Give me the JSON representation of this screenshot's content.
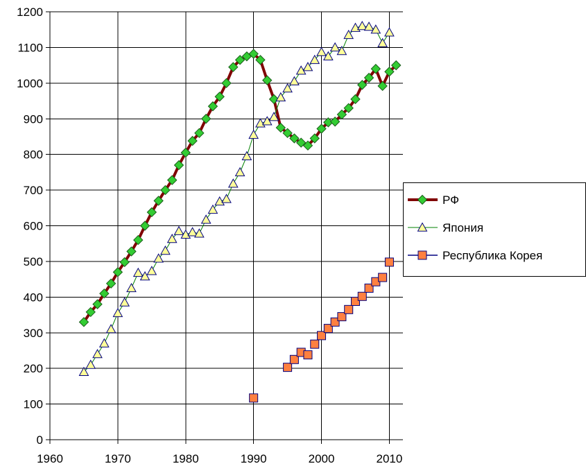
{
  "chart_data": {
    "type": "line",
    "title": "",
    "xlabel": "",
    "ylabel": "",
    "xlim": [
      1960,
      2012
    ],
    "ylim": [
      0,
      1200
    ],
    "x_ticks": [
      "1960",
      "1970",
      "1980",
      "1990",
      "2000",
      "2010"
    ],
    "y_ticks": [
      "0",
      "100",
      "200",
      "300",
      "400",
      "500",
      "600",
      "700",
      "800",
      "900",
      "1000",
      "1100",
      "1200"
    ],
    "grid": true,
    "legend_position": "right",
    "series": [
      {
        "name": "РФ",
        "color": "#800000",
        "marker": "diamond",
        "marker_color": "#33cc33",
        "x": [
          1965,
          1966,
          1967,
          1968,
          1969,
          1970,
          1971,
          1972,
          1973,
          1974,
          1975,
          1976,
          1977,
          1978,
          1979,
          1980,
          1981,
          1982,
          1983,
          1984,
          1985,
          1986,
          1987,
          1988,
          1989,
          1990,
          1991,
          1992,
          1993,
          1994,
          1995,
          1996,
          1997,
          1998,
          1999,
          2000,
          2001,
          2002,
          2003,
          2004,
          2005,
          2006,
          2007,
          2008,
          2009,
          2010,
          2011
        ],
        "y": [
          330,
          358,
          380,
          410,
          438,
          470,
          498,
          528,
          560,
          600,
          638,
          670,
          700,
          728,
          770,
          805,
          838,
          860,
          900,
          935,
          962,
          1000,
          1045,
          1065,
          1075,
          1082,
          1065,
          1008,
          955,
          875,
          860,
          845,
          833,
          825,
          845,
          872,
          890,
          892,
          912,
          930,
          955,
          995,
          1015,
          1040,
          992,
          1032,
          1050
        ]
      },
      {
        "name": "Япония",
        "color": "#008000",
        "marker": "triangle",
        "marker_color": "#ffff99",
        "x": [
          1965,
          1966,
          1967,
          1968,
          1969,
          1970,
          1971,
          1972,
          1973,
          1974,
          1975,
          1976,
          1977,
          1978,
          1979,
          1980,
          1981,
          1982,
          1983,
          1984,
          1985,
          1986,
          1987,
          1988,
          1989,
          1990,
          1991,
          1992,
          1993,
          1994,
          1995,
          1996,
          1997,
          1998,
          1999,
          2000,
          2001,
          2002,
          2003,
          2004,
          2005,
          2006,
          2007,
          2008,
          2009,
          2010
        ],
        "y": [
          190,
          210,
          240,
          270,
          310,
          355,
          385,
          425,
          468,
          458,
          473,
          508,
          530,
          563,
          585,
          575,
          582,
          578,
          617,
          645,
          668,
          675,
          718,
          750,
          795,
          855,
          887,
          893,
          905,
          960,
          985,
          1005,
          1035,
          1045,
          1065,
          1087,
          1075,
          1100,
          1090,
          1135,
          1155,
          1160,
          1158,
          1150,
          1112,
          1142
        ]
      },
      {
        "name": "Республика Корея",
        "color": "#000080",
        "marker": "square",
        "marker_color": "#ff8040",
        "line": false,
        "x": [
          1990,
          1995,
          1996,
          1997,
          1998,
          1999,
          2000,
          2001,
          2002,
          2003,
          2004,
          2005,
          2006,
          2007,
          2008,
          2009,
          2010
        ],
        "y": [
          117,
          203,
          225,
          245,
          238,
          268,
          292,
          312,
          330,
          345,
          365,
          388,
          402,
          425,
          443,
          455,
          498
        ]
      }
    ]
  }
}
